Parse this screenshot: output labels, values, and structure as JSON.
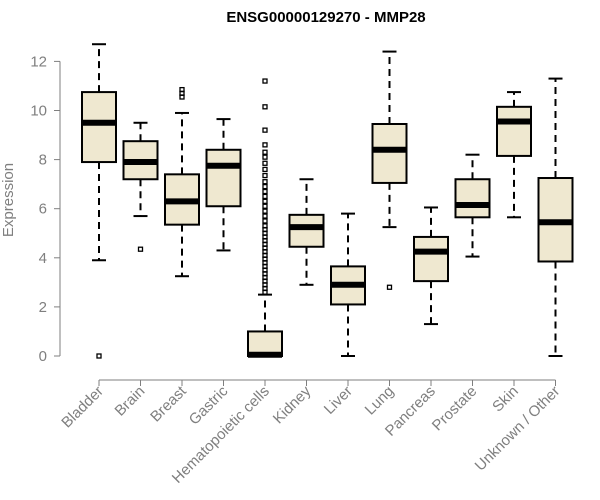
{
  "chart_data": {
    "type": "boxplot",
    "title": "ENSG00000129270 - MMP28",
    "xlabel": "",
    "ylabel": "Expression",
    "ylim": [
      0,
      12.6
    ],
    "yticks": [
      0,
      2,
      4,
      6,
      8,
      10,
      12
    ],
    "box_fill": "#efe8d0",
    "categories": [
      "Bladder",
      "Brain",
      "Breast",
      "Gastric",
      "Hematopoietic cells",
      "Kidney",
      "Liver",
      "Lung",
      "Pancreas",
      "Prostate",
      "Skin",
      "Unknown / Other"
    ],
    "boxes": [
      {
        "q1": 7.9,
        "median": 9.5,
        "q3": 10.75,
        "whisker_low": 3.9,
        "whisker_high": 12.7,
        "outliers": [
          0.0
        ]
      },
      {
        "q1": 7.2,
        "median": 7.9,
        "q3": 8.75,
        "whisker_low": 5.7,
        "whisker_high": 9.5,
        "outliers": [
          4.35
        ]
      },
      {
        "q1": 5.35,
        "median": 6.3,
        "q3": 7.4,
        "whisker_low": 3.25,
        "whisker_high": 9.9,
        "outliers": [
          10.55,
          10.7,
          10.85
        ]
      },
      {
        "q1": 6.1,
        "median": 7.75,
        "q3": 8.4,
        "whisker_low": 4.3,
        "whisker_high": 9.65,
        "outliers": []
      },
      {
        "q1": 0.0,
        "median": 0.05,
        "q3": 1.0,
        "whisker_low": 0.0,
        "whisker_high": 2.5,
        "outliers": [
          2.6,
          2.75,
          2.9,
          3.05,
          3.2,
          3.35,
          3.5,
          3.65,
          3.8,
          3.95,
          4.1,
          4.25,
          4.4,
          4.55,
          4.7,
          4.85,
          5.0,
          5.15,
          5.3,
          5.5,
          5.7,
          5.9,
          6.1,
          6.3,
          6.5,
          6.7,
          6.9,
          7.1,
          7.35,
          7.6,
          7.85,
          8.1,
          8.3,
          8.6,
          9.2,
          10.15,
          11.2
        ]
      },
      {
        "q1": 4.45,
        "median": 5.25,
        "q3": 5.75,
        "whisker_low": 2.9,
        "whisker_high": 7.2,
        "outliers": []
      },
      {
        "q1": 2.1,
        "median": 2.9,
        "q3": 3.65,
        "whisker_low": 0.0,
        "whisker_high": 5.8,
        "outliers": []
      },
      {
        "q1": 7.05,
        "median": 8.4,
        "q3": 9.45,
        "whisker_low": 5.25,
        "whisker_high": 12.4,
        "outliers": [
          2.8
        ]
      },
      {
        "q1": 3.05,
        "median": 4.25,
        "q3": 4.85,
        "whisker_low": 1.3,
        "whisker_high": 6.05,
        "outliers": []
      },
      {
        "q1": 5.65,
        "median": 6.15,
        "q3": 7.2,
        "whisker_low": 4.05,
        "whisker_high": 8.2,
        "outliers": []
      },
      {
        "q1": 8.15,
        "median": 9.55,
        "q3": 10.15,
        "whisker_low": 5.65,
        "whisker_high": 10.75,
        "outliers": []
      },
      {
        "q1": 3.85,
        "median": 5.45,
        "q3": 7.25,
        "whisker_low": 0.0,
        "whisker_high": 11.3,
        "outliers": []
      }
    ]
  }
}
